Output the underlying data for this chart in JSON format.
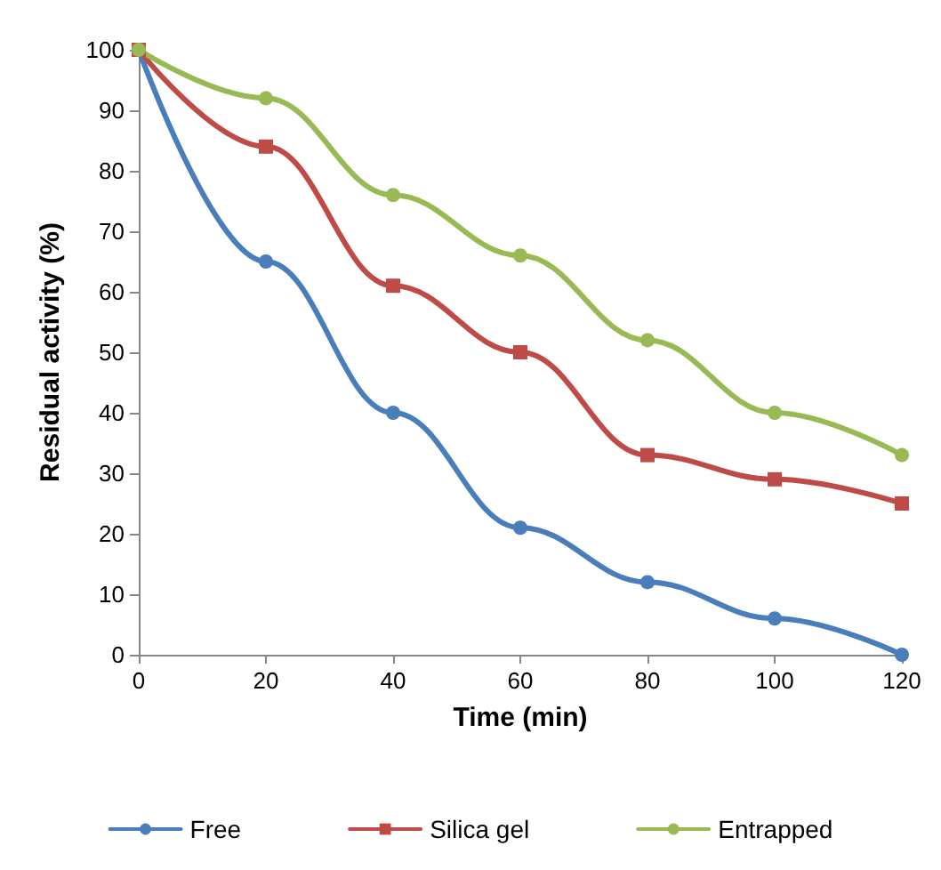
{
  "chart_data": {
    "type": "line",
    "xlabel": "Time (min)",
    "ylabel": "Residual activity (%)",
    "x": [
      0,
      20,
      40,
      60,
      80,
      100,
      120
    ],
    "series": [
      {
        "name": "Free",
        "color": "#4a7ebb",
        "marker": "circle",
        "values": [
          100,
          65,
          40,
          21,
          12,
          6,
          0
        ]
      },
      {
        "name": "Silica gel",
        "color": "#be4b48",
        "marker": "square",
        "values": [
          100,
          84,
          61,
          50,
          33,
          29,
          25
        ]
      },
      {
        "name": "Entrapped",
        "color": "#98b954",
        "marker": "circle",
        "values": [
          100,
          92,
          76,
          66,
          52,
          40,
          33
        ]
      }
    ],
    "xlim": [
      0,
      120
    ],
    "xticks": [
      0,
      20,
      40,
      60,
      80,
      100,
      120
    ],
    "ylim": [
      0,
      100
    ],
    "yticks": [
      0,
      10,
      20,
      30,
      40,
      50,
      60,
      70,
      80,
      90,
      100
    ],
    "grid": false,
    "legend": "bottom",
    "line_style": "solid"
  }
}
